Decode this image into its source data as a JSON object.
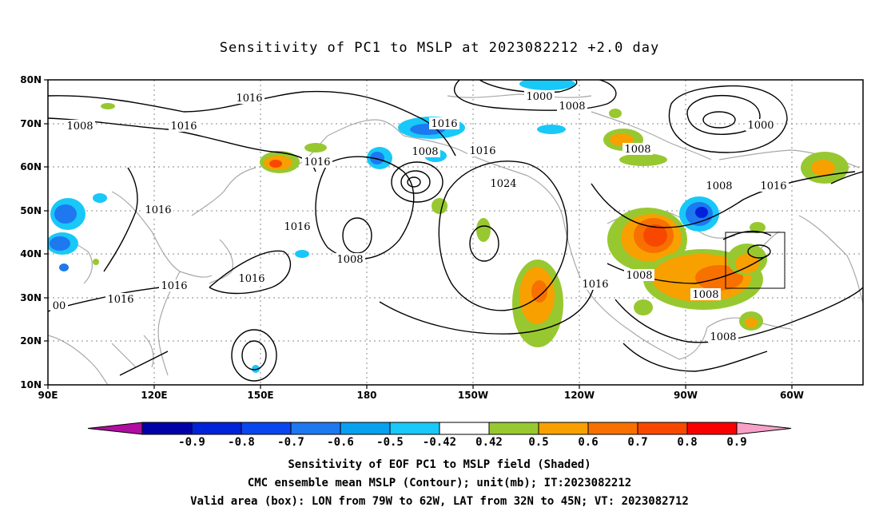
{
  "title": "Sensitivity of PC1 to MSLP at 2023082212 +2.0 day",
  "axes": {
    "lat_labels": [
      "80N",
      "70N",
      "60N",
      "50N",
      "40N",
      "30N",
      "20N",
      "10N"
    ],
    "lon_labels": [
      "90E",
      "120E",
      "150E",
      "180",
      "150W",
      "120W",
      "90W",
      "60W"
    ]
  },
  "contour_labels": [
    "1016",
    "1008",
    "1016",
    "1000",
    "1008",
    "1016",
    "1000",
    "1008",
    "1016",
    "1016",
    "1008",
    "1016",
    "1016",
    "1024",
    "1008",
    "1016",
    "1008",
    "1016",
    "1016",
    "1008",
    "1016",
    "1016",
    "1008",
    "1008",
    "00"
  ],
  "colorbar": {
    "labels": [
      "-0.9",
      "-0.8",
      "-0.7",
      "-0.6",
      "-0.5",
      "-0.42",
      "0.42",
      "0.5",
      "0.6",
      "0.7",
      "0.8",
      "0.9"
    ],
    "colors": [
      "#b00ea0",
      "#0000a8",
      "#0022d8",
      "#0a46f0",
      "#1e78f0",
      "#0aa0f0",
      "#18c8f8",
      "#ffffff",
      "#98c830",
      "#f8a000",
      "#f87000",
      "#f84800",
      "#f80000",
      "#f8a0c8"
    ]
  },
  "captions": [
    "Sensitivity of EOF PC1 to MSLP field (Shaded)",
    "CMC ensemble mean MSLP (Contour); unit(mb); IT:2023082212",
    "Valid area (box): LON from 79W to 62W, LAT from 32N to 45N; VT: 2023082712"
  ]
}
